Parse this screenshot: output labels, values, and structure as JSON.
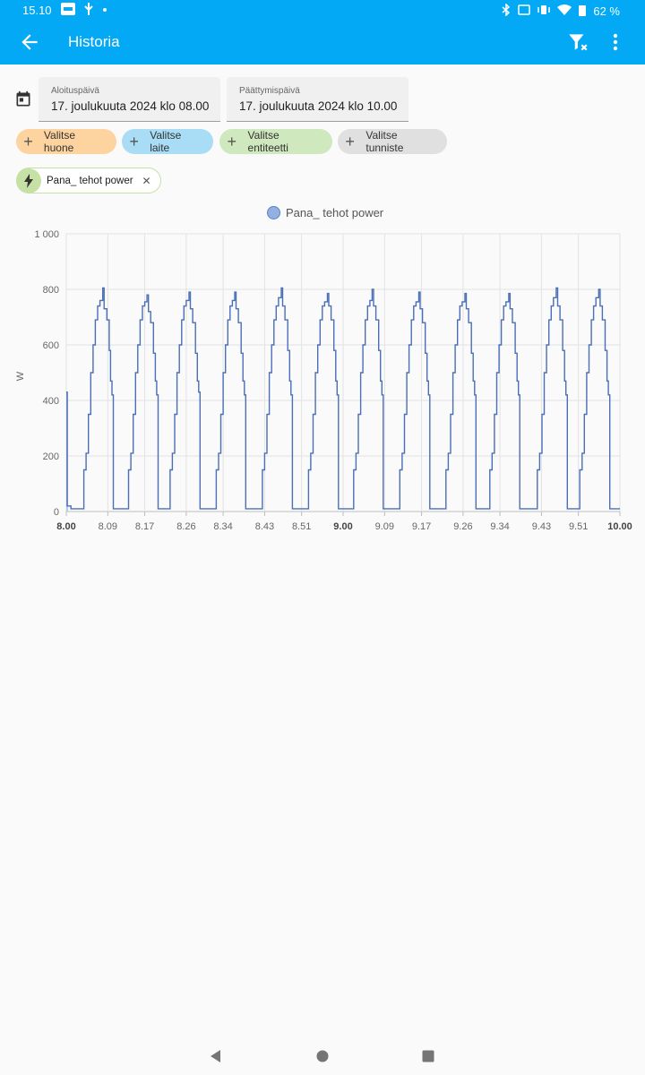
{
  "status_bar": {
    "time": "15.10",
    "battery": "62 %",
    "icons": [
      "ethernet-icon",
      "usb-icon",
      "dot-icon",
      "bluetooth-icon",
      "cast-icon",
      "vibrate-icon",
      "wifi-icon",
      "battery-icon"
    ]
  },
  "app_bar": {
    "title": "Historia",
    "icons": [
      "back-arrow-icon",
      "filter-remove-icon",
      "more-vert-icon"
    ]
  },
  "filters": {
    "start": {
      "label": "Aloituspäivä",
      "value": "17. joulukuuta 2024 klo 08.00"
    },
    "end": {
      "label": "Päättymispäivä",
      "value": "17. joulukuuta 2024 klo 10.00"
    },
    "chips": [
      {
        "label": "Valitse huone",
        "color": "#fdd3a0"
      },
      {
        "label": "Valitse laite",
        "color": "#a9dcf5"
      },
      {
        "label": "Valitse entiteetti",
        "color": "#cfe8bd"
      },
      {
        "label": "Valitse tunniste",
        "color": "#e0e0e0"
      }
    ],
    "selected_entity": {
      "label": "Pana_ tehot power",
      "icon": "flash-icon"
    }
  },
  "chart_data": {
    "type": "line",
    "legend": "Pana_ tehot power",
    "ylabel": "W",
    "ylim": [
      0,
      1000
    ],
    "y_ticks": [
      "0",
      "200",
      "400",
      "600",
      "800",
      "1 000"
    ],
    "x_range": [
      "8.00",
      "10.00"
    ],
    "x_ticks": [
      {
        "t": 0,
        "label": "8.00",
        "bold": true
      },
      {
        "t": 9,
        "label": "8.09"
      },
      {
        "t": 17,
        "label": "8.17"
      },
      {
        "t": 26,
        "label": "8.26"
      },
      {
        "t": 34,
        "label": "8.34"
      },
      {
        "t": 43,
        "label": "8.43"
      },
      {
        "t": 51,
        "label": "8.51"
      },
      {
        "t": 60,
        "label": "9.00",
        "bold": true
      },
      {
        "t": 69,
        "label": "9.09"
      },
      {
        "t": 77,
        "label": "9.17"
      },
      {
        "t": 86,
        "label": "9.26"
      },
      {
        "t": 94,
        "label": "9.34"
      },
      {
        "t": 103,
        "label": "9.43"
      },
      {
        "t": 111,
        "label": "9.51"
      },
      {
        "t": 120,
        "label": "10.00",
        "bold": true
      }
    ],
    "grid": true,
    "line_color": "#4a6fb5",
    "series": [
      {
        "name": "Pana_ tehot power",
        "cycle_peaks_w": [
          805,
          780,
          790,
          790,
          805,
          785,
          800,
          790,
          785,
          785,
          805,
          800,
          785
        ],
        "cycle_starts_min": [
          -1,
          9,
          19,
          28,
          37,
          46,
          56,
          66,
          75,
          85,
          94,
          104,
          113
        ],
        "points": [
          [
            0,
            430
          ],
          [
            0.2,
            20
          ],
          [
            1,
            10
          ],
          [
            3.5,
            10
          ],
          [
            3.8,
            150
          ],
          [
            4.3,
            210
          ],
          [
            4.8,
            350
          ],
          [
            5.3,
            500
          ],
          [
            5.8,
            600
          ],
          [
            6.3,
            690
          ],
          [
            6.8,
            740
          ],
          [
            7.3,
            760
          ],
          [
            7.9,
            805
          ],
          [
            8.2,
            730
          ],
          [
            8.8,
            690
          ],
          [
            9.3,
            580
          ],
          [
            9.6,
            470
          ],
          [
            9.9,
            420
          ],
          [
            10.2,
            10
          ],
          [
            13.2,
            10
          ],
          [
            13.5,
            150
          ],
          [
            14.0,
            210
          ],
          [
            14.5,
            350
          ],
          [
            15.0,
            500
          ],
          [
            15.5,
            600
          ],
          [
            16.0,
            690
          ],
          [
            16.5,
            740
          ],
          [
            17.0,
            755
          ],
          [
            17.5,
            780
          ],
          [
            17.8,
            720
          ],
          [
            18.3,
            680
          ],
          [
            18.9,
            570
          ],
          [
            19.3,
            470
          ],
          [
            19.6,
            420
          ],
          [
            19.9,
            10
          ],
          [
            22.2,
            10
          ],
          [
            22.5,
            150
          ],
          [
            23.0,
            210
          ],
          [
            23.5,
            350
          ],
          [
            24.0,
            500
          ],
          [
            24.5,
            600
          ],
          [
            25.0,
            690
          ],
          [
            25.5,
            740
          ],
          [
            26.0,
            760
          ],
          [
            26.6,
            790
          ],
          [
            26.9,
            730
          ],
          [
            27.4,
            680
          ],
          [
            28.0,
            570
          ],
          [
            28.4,
            470
          ],
          [
            28.7,
            430
          ],
          [
            29.0,
            10
          ],
          [
            32.2,
            10
          ],
          [
            32.5,
            150
          ],
          [
            33.0,
            210
          ],
          [
            33.5,
            350
          ],
          [
            34.0,
            500
          ],
          [
            34.5,
            600
          ],
          [
            35.0,
            690
          ],
          [
            35.5,
            740
          ],
          [
            36.0,
            760
          ],
          [
            36.5,
            790
          ],
          [
            36.8,
            730
          ],
          [
            37.3,
            680
          ],
          [
            37.9,
            570
          ],
          [
            38.3,
            470
          ],
          [
            38.6,
            420
          ],
          [
            38.9,
            10
          ],
          [
            42.2,
            10
          ],
          [
            42.5,
            150
          ],
          [
            43.0,
            210
          ],
          [
            43.5,
            350
          ],
          [
            44.0,
            500
          ],
          [
            44.5,
            600
          ],
          [
            45.0,
            690
          ],
          [
            45.5,
            740
          ],
          [
            46.0,
            770
          ],
          [
            46.6,
            805
          ],
          [
            46.9,
            740
          ],
          [
            47.4,
            690
          ],
          [
            48.0,
            580
          ],
          [
            48.4,
            470
          ],
          [
            48.7,
            420
          ],
          [
            49.0,
            10
          ],
          [
            52.2,
            10
          ],
          [
            52.5,
            150
          ],
          [
            53.0,
            210
          ],
          [
            53.5,
            350
          ],
          [
            54.0,
            500
          ],
          [
            54.5,
            600
          ],
          [
            55.0,
            690
          ],
          [
            55.5,
            740
          ],
          [
            56.0,
            755
          ],
          [
            56.6,
            785
          ],
          [
            56.9,
            740
          ],
          [
            57.4,
            690
          ],
          [
            58.0,
            580
          ],
          [
            58.4,
            470
          ],
          [
            58.7,
            420
          ],
          [
            59.0,
            10
          ],
          [
            62.0,
            10
          ],
          [
            62.3,
            150
          ],
          [
            62.8,
            210
          ],
          [
            63.3,
            350
          ],
          [
            63.8,
            500
          ],
          [
            64.3,
            600
          ],
          [
            64.8,
            690
          ],
          [
            65.3,
            740
          ],
          [
            65.8,
            760
          ],
          [
            66.3,
            800
          ],
          [
            66.6,
            740
          ],
          [
            67.1,
            690
          ],
          [
            67.7,
            580
          ],
          [
            68.1,
            470
          ],
          [
            68.4,
            420
          ],
          [
            68.7,
            10
          ],
          [
            72.0,
            10
          ],
          [
            72.3,
            150
          ],
          [
            72.8,
            210
          ],
          [
            73.3,
            350
          ],
          [
            73.8,
            500
          ],
          [
            74.3,
            600
          ],
          [
            74.8,
            690
          ],
          [
            75.3,
            740
          ],
          [
            75.8,
            755
          ],
          [
            76.4,
            790
          ],
          [
            76.7,
            730
          ],
          [
            77.2,
            680
          ],
          [
            77.8,
            570
          ],
          [
            78.2,
            470
          ],
          [
            78.5,
            420
          ],
          [
            78.8,
            10
          ],
          [
            82.0,
            10
          ],
          [
            82.3,
            150
          ],
          [
            82.8,
            210
          ],
          [
            83.3,
            350
          ],
          [
            83.8,
            500
          ],
          [
            84.3,
            600
          ],
          [
            84.8,
            690
          ],
          [
            85.3,
            740
          ],
          [
            85.8,
            755
          ],
          [
            86.4,
            785
          ],
          [
            86.7,
            730
          ],
          [
            87.2,
            680
          ],
          [
            87.8,
            570
          ],
          [
            88.2,
            470
          ],
          [
            88.5,
            420
          ],
          [
            88.8,
            10
          ],
          [
            91.5,
            10
          ],
          [
            91.8,
            150
          ],
          [
            92.3,
            210
          ],
          [
            92.8,
            350
          ],
          [
            93.3,
            500
          ],
          [
            93.8,
            600
          ],
          [
            94.3,
            690
          ],
          [
            94.8,
            740
          ],
          [
            95.3,
            755
          ],
          [
            95.9,
            785
          ],
          [
            96.2,
            730
          ],
          [
            96.7,
            680
          ],
          [
            97.3,
            570
          ],
          [
            97.7,
            470
          ],
          [
            98.0,
            420
          ],
          [
            98.3,
            10
          ],
          [
            101.8,
            10
          ],
          [
            102.1,
            150
          ],
          [
            102.6,
            210
          ],
          [
            103.1,
            350
          ],
          [
            103.6,
            500
          ],
          [
            104.1,
            600
          ],
          [
            104.6,
            690
          ],
          [
            105.1,
            740
          ],
          [
            105.6,
            770
          ],
          [
            106.2,
            805
          ],
          [
            106.5,
            740
          ],
          [
            107.0,
            690
          ],
          [
            107.6,
            580
          ],
          [
            108.0,
            470
          ],
          [
            108.3,
            420
          ],
          [
            108.6,
            10
          ],
          [
            111.0,
            10
          ],
          [
            111.3,
            150
          ],
          [
            111.8,
            210
          ],
          [
            112.3,
            350
          ],
          [
            112.8,
            500
          ],
          [
            113.3,
            600
          ],
          [
            113.8,
            690
          ],
          [
            114.3,
            740
          ],
          [
            114.8,
            770
          ],
          [
            115.4,
            800
          ],
          [
            115.7,
            740
          ],
          [
            116.2,
            690
          ],
          [
            116.8,
            580
          ],
          [
            117.2,
            470
          ],
          [
            117.5,
            420
          ],
          [
            117.8,
            10
          ],
          [
            120.0,
            10
          ]
        ]
      }
    ]
  }
}
